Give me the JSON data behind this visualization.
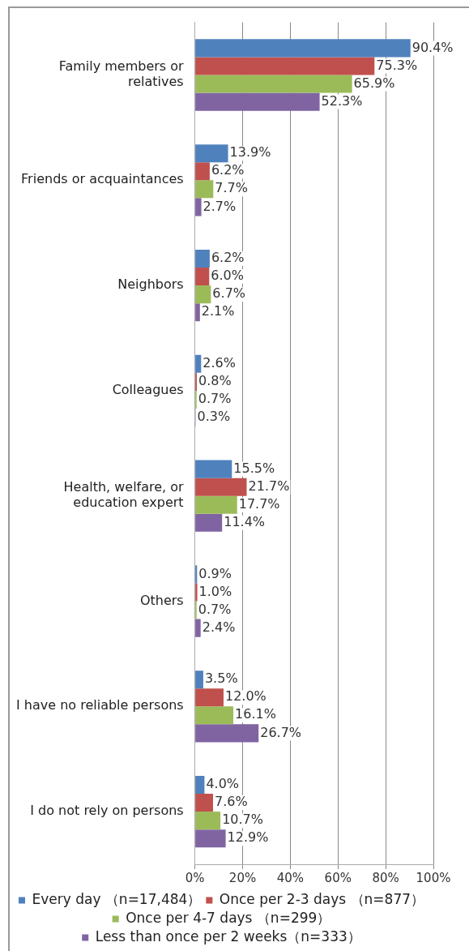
{
  "chart_data": {
    "type": "bar",
    "orientation": "horizontal",
    "categories": [
      "Family members or relatives",
      "Friends or acquaintances",
      "Neighbors",
      "Colleagues",
      "Health, welfare, or education expert",
      "Others",
      "I have no reliable persons",
      "I do not rely on persons"
    ],
    "series": [
      {
        "name": "Every day （n=17,484）",
        "color": "#4f81bd",
        "values": [
          90.4,
          13.9,
          6.2,
          2.6,
          15.5,
          0.9,
          3.5,
          4.0
        ],
        "value_labels": [
          "90.4%",
          "13.9%",
          "6.2%",
          "2.6%",
          "15.5%",
          "0.9%",
          "3.5%",
          "4.0%"
        ]
      },
      {
        "name": "Once per 2-3 days （n=877）",
        "color": "#c0504d",
        "values": [
          75.3,
          6.2,
          6.0,
          0.8,
          21.7,
          1.0,
          12.0,
          7.6
        ],
        "value_labels": [
          "75.3%",
          "6.2%",
          "6.0%",
          "0.8%",
          "21.7%",
          "1.0%",
          "12.0%",
          "7.6%"
        ]
      },
      {
        "name": "Once per 4-7 days （n=299）",
        "color": "#9bbb59",
        "values": [
          65.9,
          7.7,
          6.7,
          0.7,
          17.7,
          0.7,
          16.1,
          10.7
        ],
        "value_labels": [
          "65.9%",
          "7.7%",
          "6.7%",
          "0.7%",
          "17.7%",
          "0.7%",
          "16.1%",
          "10.7%"
        ]
      },
      {
        "name": "Less than once per 2 weeks（n=333）",
        "color": "#8064a2",
        "values": [
          52.3,
          2.7,
          2.1,
          0.3,
          11.4,
          2.4,
          26.7,
          12.9
        ],
        "value_labels": [
          "52.3%",
          "2.7%",
          "2.1%",
          "0.3%",
          "11.4%",
          "2.4%",
          "26.7%",
          "12.9%"
        ]
      }
    ],
    "xlim": [
      0,
      100
    ],
    "xticks": [
      {
        "value": 0,
        "label": "0%"
      },
      {
        "value": 20,
        "label": "20%"
      },
      {
        "value": 40,
        "label": "40%"
      },
      {
        "value": 60,
        "label": "60%"
      },
      {
        "value": 80,
        "label": "80%"
      },
      {
        "value": 100,
        "label": "100%"
      }
    ],
    "grid": "x",
    "legend": "bottom"
  }
}
